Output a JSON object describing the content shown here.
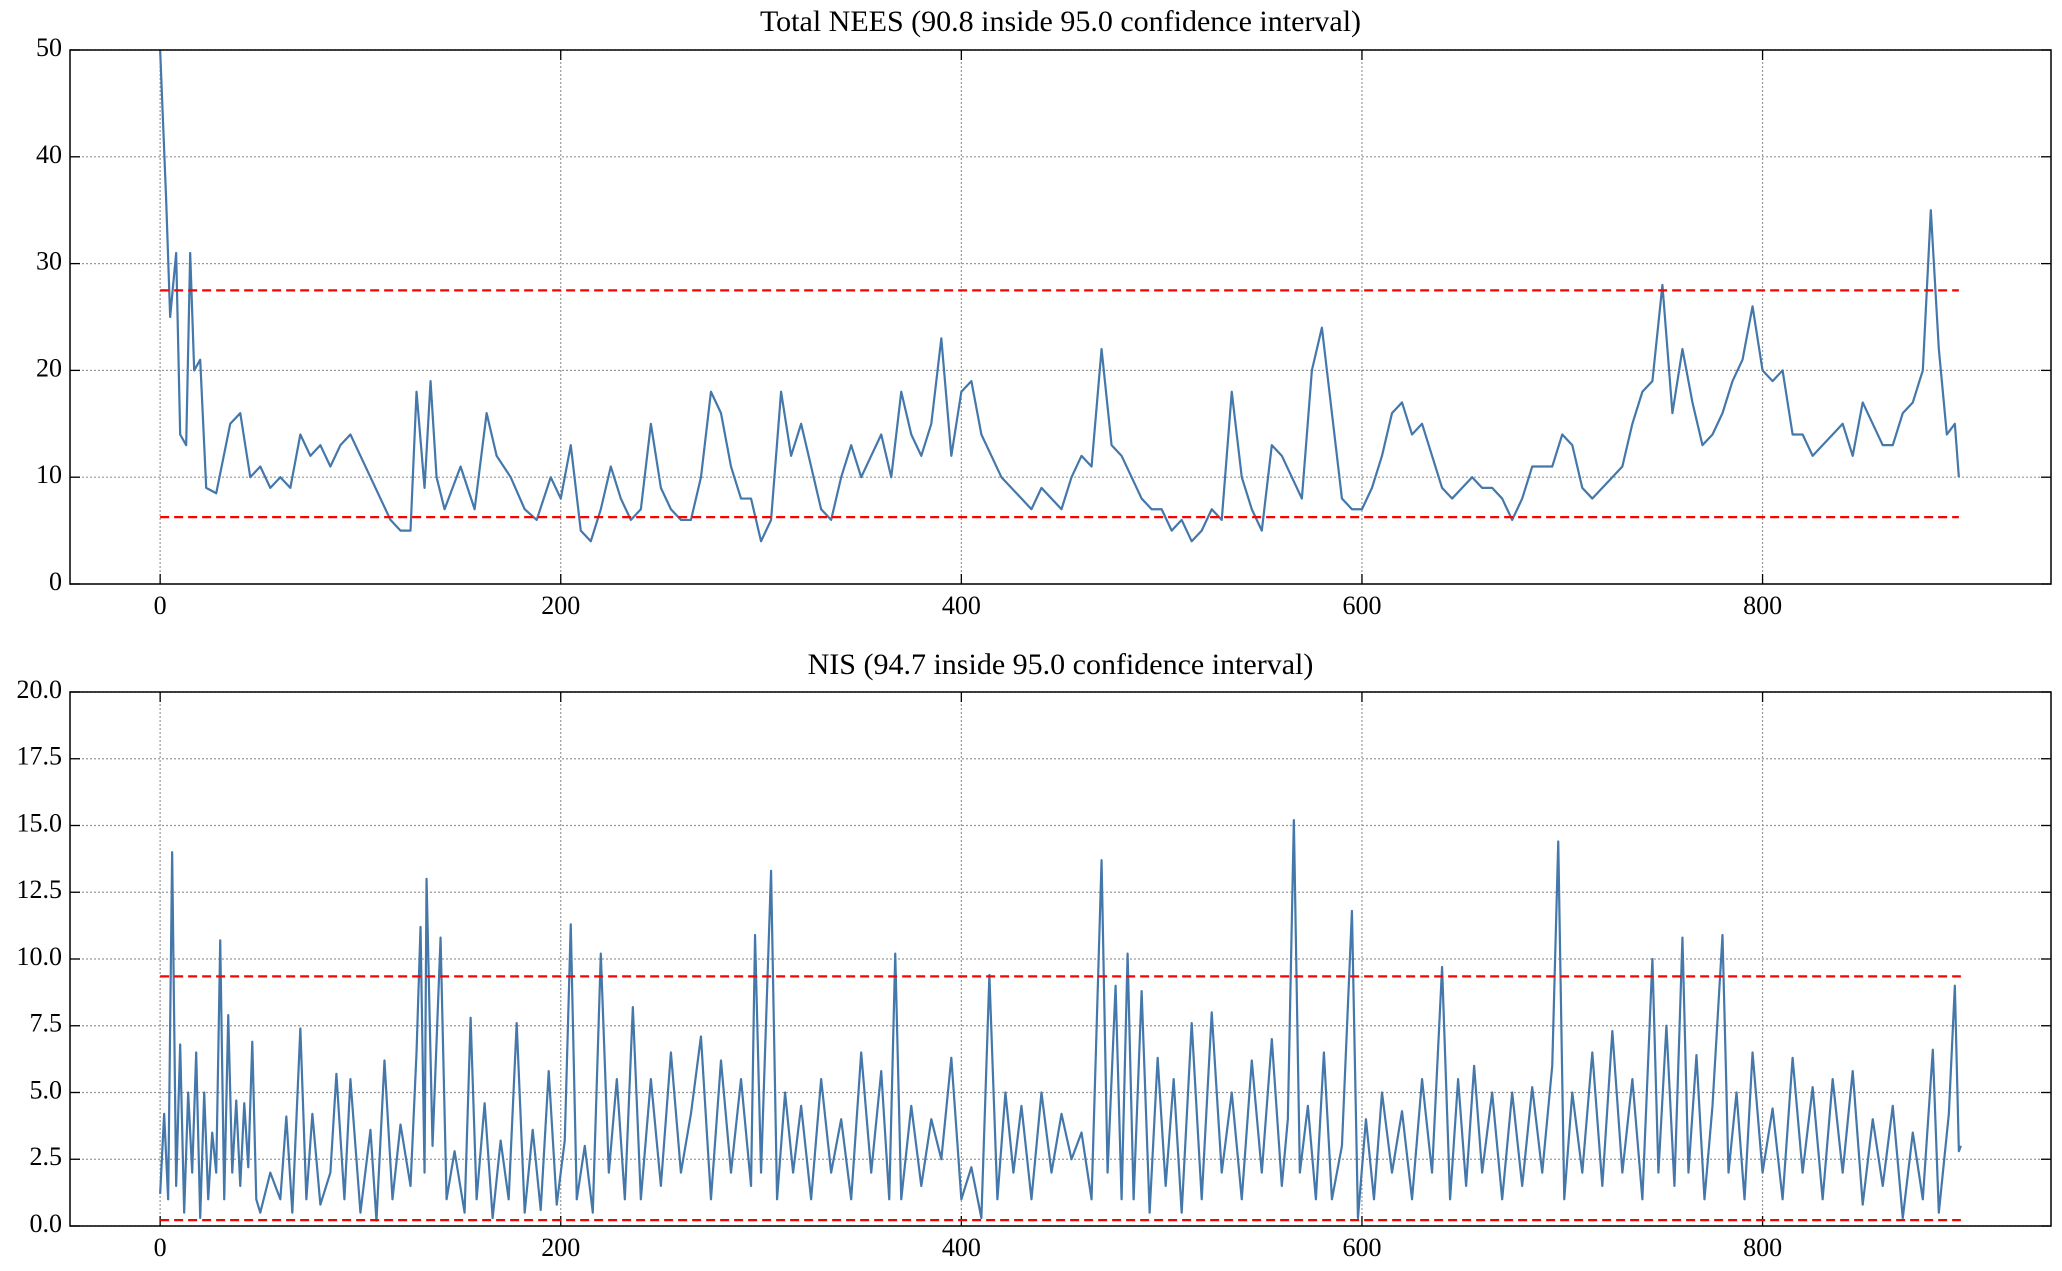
{
  "chart_data": [
    {
      "type": "line",
      "title": "Total NEES (90.8 inside 95.0 confidence interval)",
      "x": [
        0,
        3,
        5,
        8,
        10,
        13,
        15,
        17,
        20,
        23,
        28,
        35,
        40,
        45,
        50,
        55,
        60,
        65,
        70,
        75,
        80,
        85,
        90,
        95,
        100,
        105,
        110,
        115,
        120,
        125,
        128,
        132,
        135,
        138,
        142,
        150,
        157,
        163,
        168,
        175,
        182,
        188,
        195,
        200,
        205,
        210,
        215,
        220,
        225,
        230,
        235,
        240,
        245,
        250,
        255,
        260,
        265,
        270,
        275,
        280,
        285,
        290,
        295,
        300,
        305,
        310,
        315,
        320,
        325,
        330,
        335,
        340,
        345,
        350,
        355,
        360,
        365,
        370,
        375,
        380,
        385,
        390,
        395,
        400,
        405,
        410,
        415,
        420,
        425,
        430,
        435,
        440,
        445,
        450,
        455,
        460,
        465,
        470,
        475,
        480,
        485,
        490,
        495,
        500,
        505,
        510,
        515,
        520,
        525,
        530,
        535,
        540,
        545,
        550,
        555,
        560,
        565,
        570,
        575,
        580,
        585,
        590,
        595,
        600,
        605,
        610,
        615,
        620,
        625,
        630,
        635,
        640,
        645,
        650,
        655,
        660,
        665,
        670,
        675,
        680,
        685,
        690,
        695,
        700,
        705,
        710,
        715,
        720,
        725,
        730,
        735,
        740,
        745,
        750,
        755,
        760,
        765,
        770,
        775,
        780,
        785,
        790,
        795,
        800,
        805,
        810,
        815,
        820,
        825,
        830,
        835,
        840,
        845,
        850,
        855,
        860,
        865,
        870,
        875,
        880,
        884,
        888,
        892,
        896,
        898
      ],
      "values": [
        50,
        36,
        25,
        31,
        14,
        13,
        31,
        20,
        21,
        9,
        8.5,
        15,
        16,
        10,
        11,
        9,
        10,
        9,
        14,
        12,
        13,
        11,
        13,
        14,
        12,
        10,
        8,
        6,
        5,
        5,
        18,
        9,
        19,
        10,
        7,
        11,
        7,
        16,
        12,
        10,
        7,
        6,
        10,
        8,
        13,
        5,
        4,
        7,
        11,
        8,
        6,
        7,
        15,
        9,
        7,
        6,
        6,
        10,
        18,
        16,
        11,
        8,
        8,
        4,
        6,
        18,
        12,
        15,
        11,
        7,
        6,
        10,
        13,
        10,
        12,
        14,
        10,
        18,
        14,
        12,
        15,
        23,
        12,
        18,
        19,
        14,
        12,
        10,
        9,
        8,
        7,
        9,
        8,
        7,
        10,
        12,
        11,
        22,
        13,
        12,
        10,
        8,
        7,
        7,
        5,
        6,
        4,
        5,
        7,
        6,
        18,
        10,
        7,
        5,
        13,
        12,
        10,
        8,
        20,
        24,
        16,
        8,
        7,
        7,
        9,
        12,
        16,
        17,
        14,
        15,
        12,
        9,
        8,
        9,
        10,
        9,
        9,
        8,
        6,
        8,
        11,
        11,
        11,
        14,
        13,
        9,
        8,
        9,
        10,
        11,
        15,
        18,
        19,
        28,
        16,
        22,
        17,
        13,
        14,
        16,
        19,
        21,
        26,
        20,
        19,
        20,
        14,
        14,
        12,
        13,
        14,
        15,
        12,
        17,
        15,
        13,
        13,
        16,
        17,
        20,
        35,
        22,
        14,
        15,
        10
      ],
      "color": "#4477aa",
      "hlines": [
        27.49,
        6.26
      ],
      "hline_color": "#ff0000",
      "xlim": [
        -45,
        944
      ],
      "xticks": [
        0,
        200,
        400,
        600,
        800
      ],
      "ylim": [
        0,
        50
      ],
      "yticks": [
        0,
        10,
        20,
        30,
        40,
        50
      ],
      "grid": true
    },
    {
      "type": "line",
      "title": "NIS (94.7 inside 95.0 confidence interval)",
      "x": [
        0,
        2,
        4,
        6,
        8,
        10,
        12,
        14,
        16,
        18,
        20,
        22,
        24,
        26,
        28,
        30,
        32,
        34,
        36,
        38,
        40,
        42,
        44,
        46,
        48,
        50,
        55,
        60,
        63,
        66,
        70,
        73,
        76,
        80,
        85,
        88,
        92,
        95,
        100,
        105,
        108,
        112,
        116,
        120,
        125,
        128,
        130,
        132,
        133,
        136,
        140,
        143,
        147,
        152,
        155,
        158,
        162,
        166,
        170,
        174,
        178,
        182,
        186,
        190,
        194,
        198,
        202,
        205,
        208,
        212,
        216,
        220,
        224,
        228,
        232,
        236,
        240,
        245,
        250,
        255,
        260,
        265,
        270,
        275,
        280,
        285,
        290,
        295,
        297,
        300,
        305,
        308,
        312,
        316,
        320,
        325,
        330,
        335,
        340,
        345,
        350,
        355,
        360,
        364,
        367,
        370,
        375,
        380,
        385,
        390,
        395,
        400,
        405,
        410,
        414,
        418,
        422,
        426,
        430,
        435,
        440,
        445,
        450,
        455,
        460,
        465,
        470,
        473,
        477,
        480,
        483,
        486,
        490,
        494,
        498,
        502,
        506,
        510,
        515,
        520,
        525,
        530,
        535,
        540,
        545,
        550,
        555,
        560,
        563,
        566,
        569,
        573,
        577,
        581,
        585,
        590,
        595,
        598,
        602,
        606,
        610,
        615,
        620,
        625,
        630,
        635,
        640,
        644,
        648,
        652,
        656,
        660,
        665,
        670,
        675,
        680,
        685,
        690,
        695,
        698,
        701,
        705,
        710,
        715,
        720,
        725,
        730,
        735,
        740,
        745,
        748,
        752,
        756,
        760,
        763,
        767,
        771,
        775,
        780,
        783,
        787,
        791,
        795,
        800,
        805,
        810,
        815,
        820,
        825,
        830,
        835,
        840,
        845,
        850,
        855,
        860,
        865,
        870,
        875,
        880,
        885,
        888,
        893,
        896,
        898,
        899
      ],
      "values": [
        1.2,
        4.2,
        1.0,
        14,
        1.5,
        6.8,
        0.5,
        5,
        2,
        6.5,
        0.3,
        5,
        1,
        3.5,
        2,
        10.7,
        1,
        7.9,
        2,
        4.7,
        1.5,
        4.6,
        2.2,
        6.9,
        1,
        0.5,
        2,
        1,
        4.1,
        0.5,
        7.4,
        1,
        4.2,
        0.8,
        2,
        5.7,
        1,
        5.5,
        0.5,
        3.6,
        0.2,
        6.2,
        1,
        3.8,
        1.5,
        6.5,
        11.2,
        2,
        13,
        3,
        10.8,
        1,
        2.8,
        0.5,
        7.8,
        1,
        4.6,
        0.3,
        3.2,
        1,
        7.6,
        0.5,
        3.6,
        0.6,
        5.8,
        0.8,
        3.2,
        11.3,
        1,
        3,
        0.5,
        10.2,
        2,
        5.5,
        1,
        8.2,
        1,
        5.5,
        1.5,
        6.5,
        2,
        4.2,
        7.1,
        1,
        6.2,
        2,
        5.5,
        1.5,
        10.9,
        2,
        13.3,
        1,
        5,
        2,
        4.5,
        1,
        5.5,
        2,
        4,
        1,
        6.5,
        2,
        5.8,
        1,
        10.2,
        1,
        4.5,
        1.5,
        4,
        2.5,
        6.3,
        1,
        2.2,
        0.3,
        9.4,
        1,
        5,
        2,
        4.5,
        1,
        5,
        2,
        4.2,
        2.5,
        3.5,
        1,
        13.7,
        2,
        9,
        1,
        10.2,
        1,
        8.8,
        0.5,
        6.3,
        1.5,
        5.5,
        0.5,
        7.6,
        1,
        8,
        2,
        5,
        1,
        6.2,
        2,
        7,
        1.5,
        4,
        15.2,
        2,
        4.5,
        1,
        6.5,
        1,
        3,
        11.8,
        0.3,
        4,
        1,
        5,
        2,
        4.3,
        1,
        5.5,
        2,
        9.7,
        1,
        5.5,
        1.5,
        6,
        2,
        5,
        1,
        5,
        1.5,
        5.2,
        2,
        6,
        14.4,
        1,
        5,
        2,
        6.5,
        1.5,
        7.3,
        2,
        5.5,
        1,
        10,
        2,
        7.5,
        1.5,
        10.8,
        2,
        6.4,
        1,
        4.5,
        10.9,
        2,
        5,
        1,
        6.5,
        2,
        4.4,
        1,
        6.3,
        2,
        5.2,
        1,
        5.5,
        2,
        5.8,
        0.8,
        4,
        1.5,
        4.5,
        0.3,
        3.5,
        1,
        6.6,
        0.5,
        4.2,
        9,
        2.8,
        3
      ],
      "color": "#4477aa",
      "hlines": [
        9.35,
        0.22
      ],
      "hline_color": "#ff0000",
      "xlim": [
        -45,
        944
      ],
      "xticks": [
        0,
        200,
        400,
        600,
        800
      ],
      "ylim": [
        0,
        20
      ],
      "yticks": [
        {
          "value": 0,
          "label": "0.0"
        },
        2.5,
        {
          "value": 5,
          "label": "5.0"
        },
        7.5,
        {
          "value": 10,
          "label": "10.0"
        },
        12.5,
        {
          "value": 15,
          "label": "15.0"
        },
        17.5,
        {
          "value": 20,
          "label": "20.0"
        }
      ],
      "grid": true
    }
  ]
}
